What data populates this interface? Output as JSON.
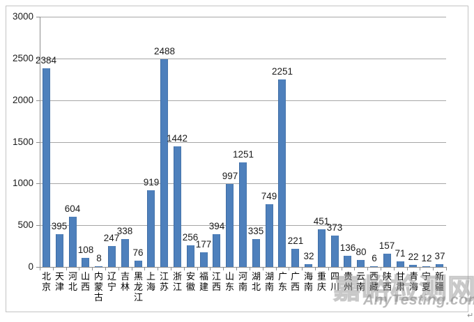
{
  "chart_data": {
    "type": "bar",
    "title": "",
    "xlabel": "",
    "ylabel": "",
    "categories": [
      "北京",
      "天津",
      "河北",
      "山西",
      "内蒙古",
      "辽宁",
      "吉林",
      "黑龙江",
      "上海",
      "江苏",
      "浙江",
      "安徽",
      "福建",
      "江西",
      "山东",
      "河南",
      "湖北",
      "湖南",
      "广东",
      "广西",
      "海南",
      "重庆",
      "四川",
      "贵州",
      "云南",
      "西藏",
      "陕西",
      "甘肃",
      "青海",
      "宁夏",
      "新疆"
    ],
    "values": [
      2384,
      395,
      604,
      108,
      8,
      247,
      338,
      76,
      919,
      2488,
      1442,
      256,
      177,
      394,
      997,
      1251,
      335,
      749,
      2251,
      221,
      32,
      451,
      373,
      136,
      80,
      6,
      157,
      71,
      22,
      12,
      37
    ],
    "ylim": [
      0,
      3000
    ],
    "yticks": [
      0,
      500,
      1000,
      1500,
      2000,
      2500,
      3000
    ],
    "grid": true,
    "legend_position": "none",
    "data_labels": true,
    "bar_color": "#4E80BC",
    "gridline_color": "#A6A6A6",
    "axis_color": "#8C8C8C"
  },
  "watermark": {
    "cn": "嘉峪检测网",
    "en": "AnyTesting.com"
  },
  "page": {
    "background": "#FFFFFF",
    "frame_border_color": "#C3C3C3",
    "paragraph_mark": "↵"
  }
}
